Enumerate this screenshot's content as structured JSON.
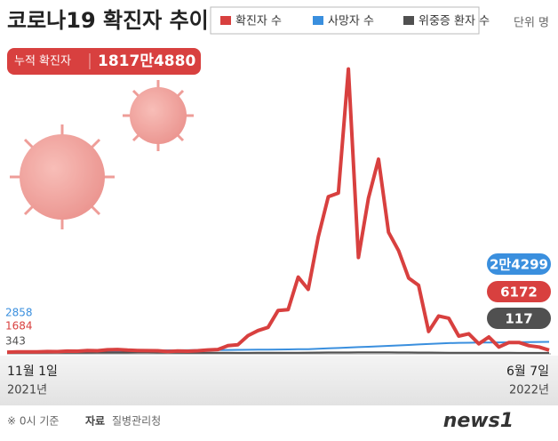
{
  "chart_data": {
    "type": "line",
    "title": "코로나19 확진자 추이",
    "unit": "단위 명",
    "cumulative_label": "누적 확진자",
    "cumulative_value": "1817만4880",
    "categories": [
      "11월 1일",
      null,
      null,
      null,
      null,
      null,
      null,
      null,
      null,
      null,
      null,
      null,
      null,
      null,
      null,
      null,
      null,
      null,
      null,
      null,
      null,
      null,
      null,
      null,
      null,
      null,
      null,
      null,
      null,
      null,
      null,
      null,
      null,
      null,
      null,
      null,
      null,
      null,
      null,
      null,
      null,
      null,
      null,
      null,
      null,
      null,
      null,
      null,
      null,
      null,
      null,
      null,
      null,
      null,
      "6월 7일"
    ],
    "x_year_labels": [
      "2021년",
      "2022년"
    ],
    "ylim": [
      0,
      640000
    ],
    "series": [
      {
        "name": "확진자 수",
        "color": "#d8403f",
        "values": [
          1684,
          2500,
          2400,
          2500,
          3200,
          3000,
          4100,
          3900,
          5300,
          4950,
          7100,
          7600,
          6200,
          5400,
          5000,
          4900,
          3100,
          4400,
          3900,
          4800,
          6600,
          7500,
          16000,
          18000,
          38000,
          49000,
          56000,
          93000,
          95000,
          166000,
          139000,
          254000,
          342000,
          350000,
          621328,
          209000,
          339000,
          424000,
          264000,
          224000,
          164000,
          148000,
          47000,
          81000,
          76000,
          37000,
          42000,
          20000,
          35000,
          13000,
          23000,
          23000,
          16000,
          13000,
          6172
        ]
      },
      {
        "name": "사망자 수",
        "color": "#3a8fde",
        "values": [
          2858,
          2950,
          3050,
          3150,
          3240,
          3330,
          3430,
          3530,
          3790,
          4060,
          4330,
          4600,
          4870,
          5140,
          5410,
          5625,
          5770,
          5920,
          6060,
          6210,
          6360,
          6500,
          6650,
          6800,
          7010,
          7230,
          7440,
          7660,
          7870,
          8090,
          8300,
          9190,
          10080,
          10970,
          11860,
          12750,
          13640,
          14530,
          15640,
          16620,
          17600,
          18580,
          19560,
          20540,
          21520,
          22200,
          22430,
          22670,
          22900,
          23130,
          23370,
          23600,
          23830,
          24070,
          24299
        ],
        "value_labels": [
          null,
          null,
          null,
          null,
          null,
          null,
          null,
          null,
          null,
          null,
          null,
          null,
          null,
          null,
          null,
          null,
          null,
          null,
          null,
          null,
          null,
          null,
          null,
          null,
          null,
          null,
          null,
          null,
          null,
          null,
          null,
          null,
          null,
          null,
          null,
          null,
          null,
          null,
          null,
          null,
          null,
          null,
          null,
          null,
          null,
          null,
          null,
          null,
          null,
          null,
          null,
          null,
          null,
          null,
          "2만4299"
        ]
      },
      {
        "name": "위중증 환자 수",
        "color": "#505050",
        "values": [
          343,
          400,
          470,
          550,
          630,
          700,
          730,
          750,
          850,
          900,
          980,
          1050,
          1020,
          1070,
          1100,
          1020,
          880,
          750,
          620,
          500,
          430,
          390,
          320,
          270,
          280,
          300,
          380,
          440,
          480,
          660,
          730,
          900,
          1100,
          1150,
          1200,
          1270,
          1300,
          1300,
          1270,
          1150,
          1100,
          1000,
          900,
          800,
          650,
          600,
          480,
          450,
          400,
          330,
          300,
          230,
          200,
          150,
          117
        ]
      }
    ]
  },
  "footer": {
    "note": "※ 0시 기준",
    "source_label": "자료",
    "source": "질병관리청",
    "logo": "news1"
  }
}
